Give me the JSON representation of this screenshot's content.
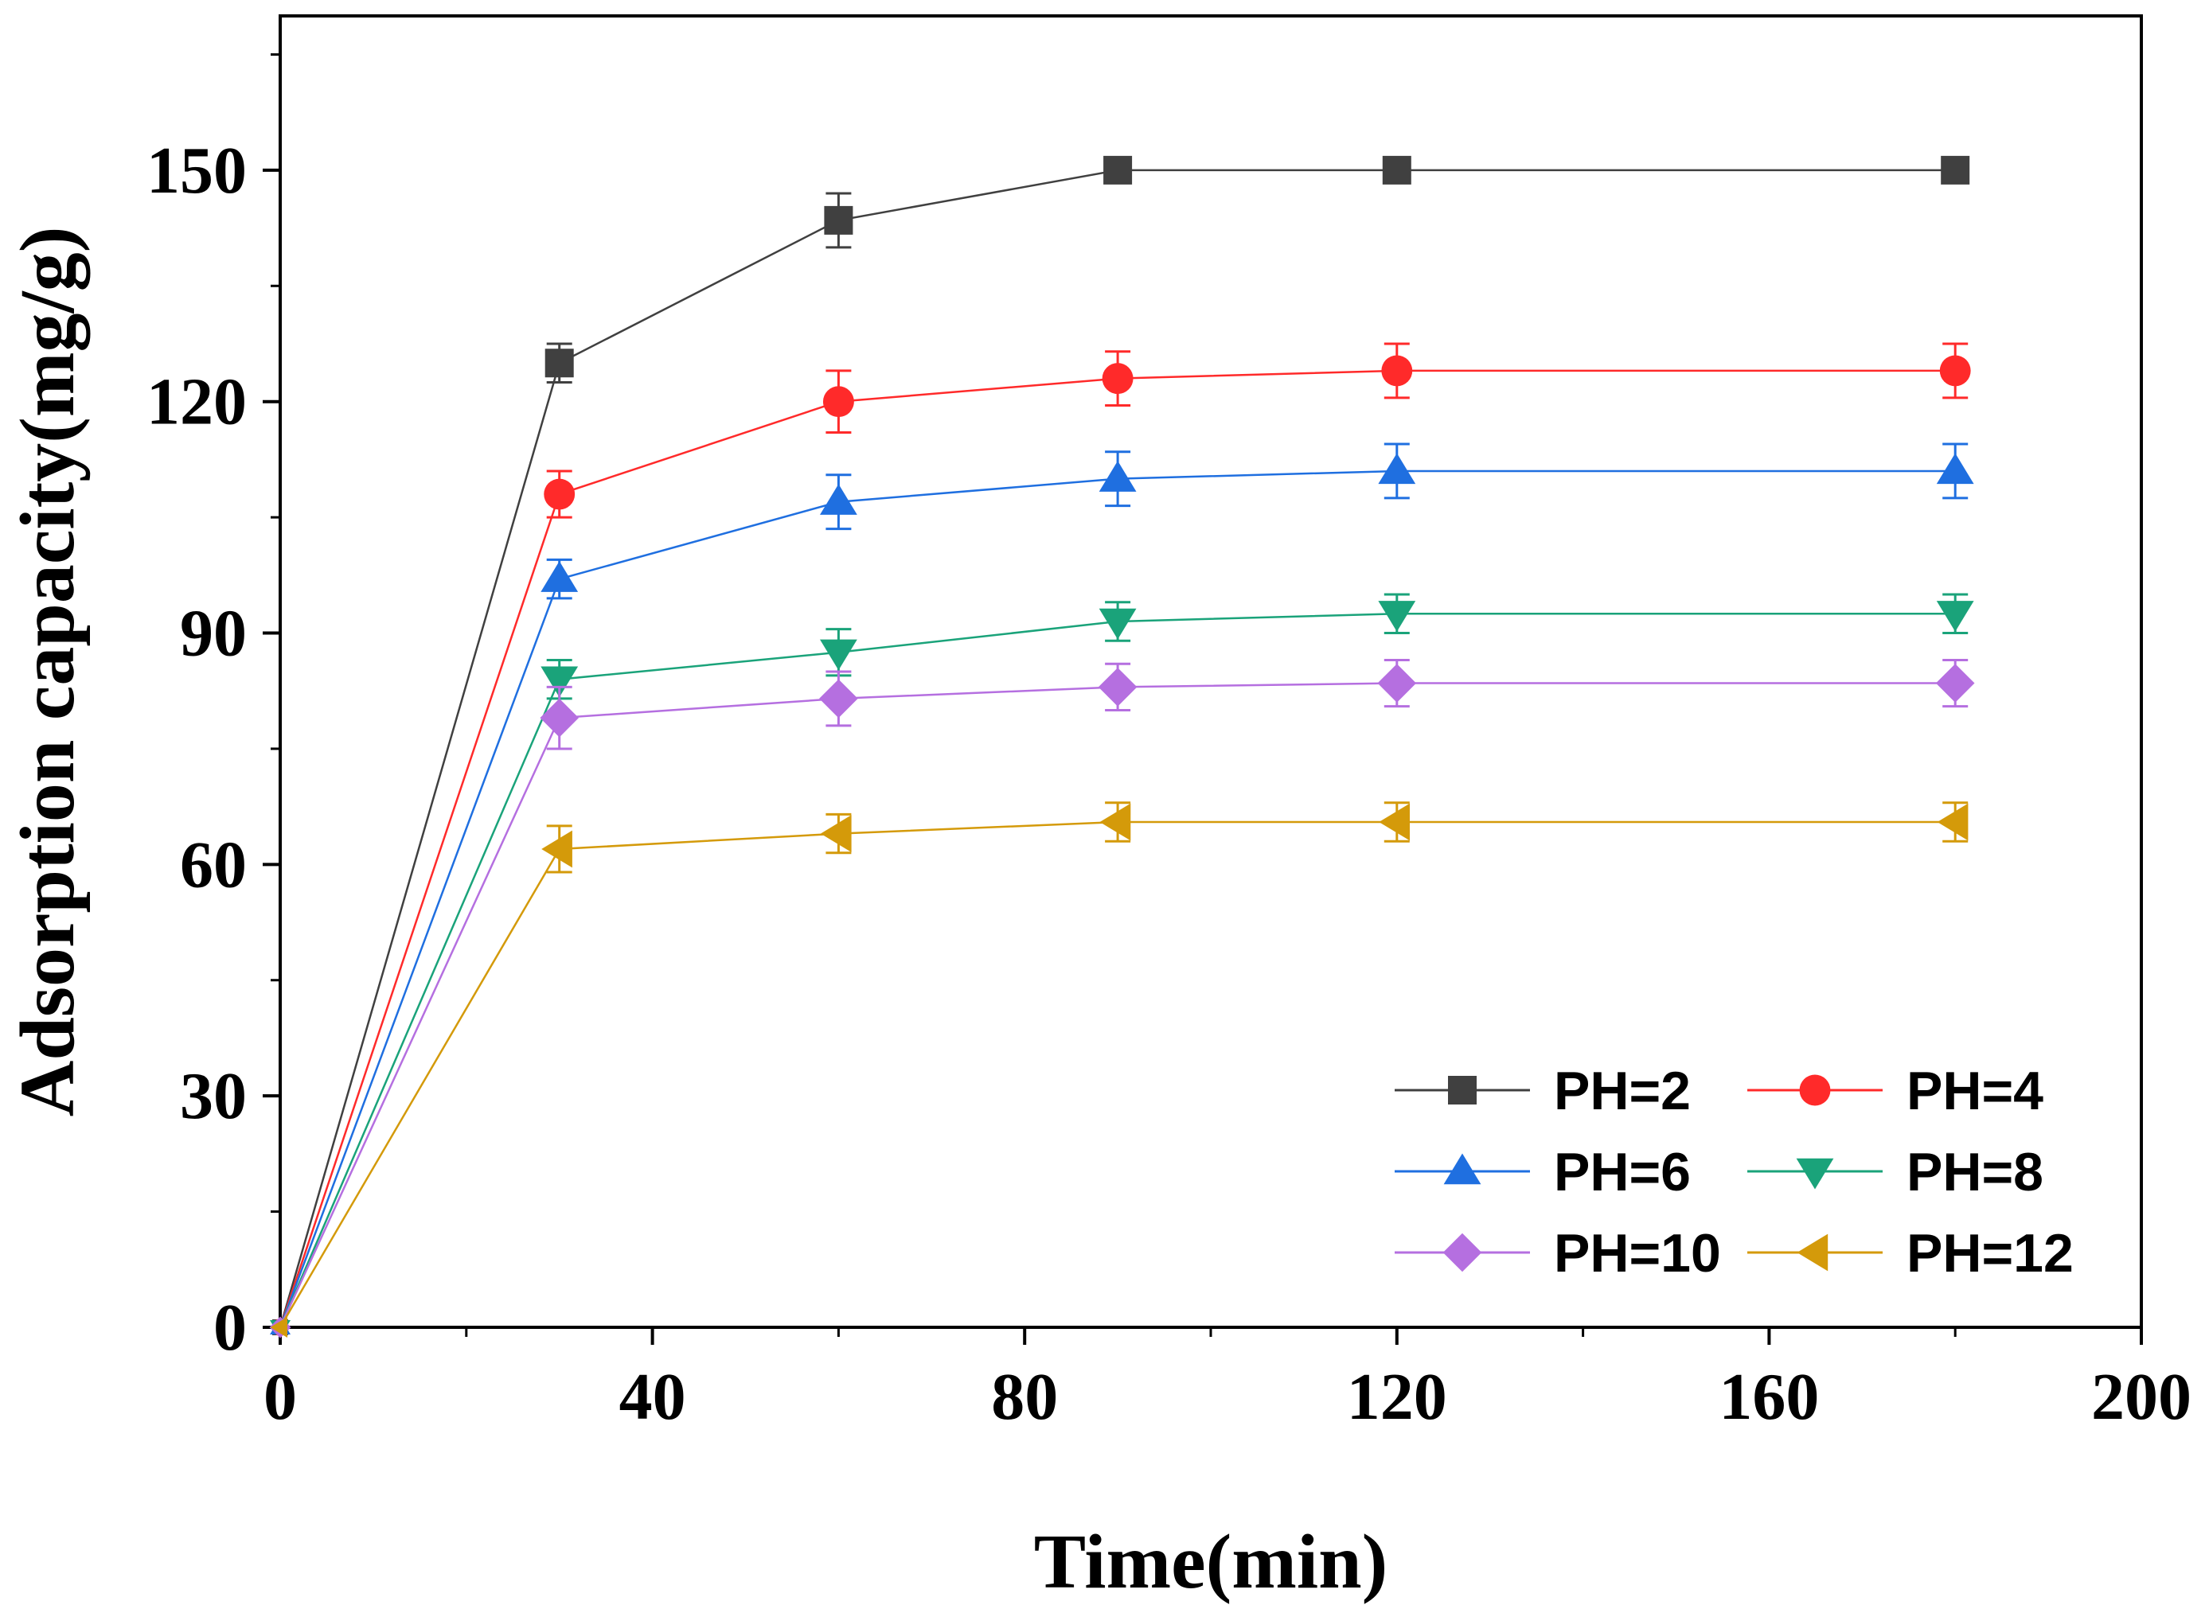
{
  "chart_data": {
    "type": "line",
    "title": "",
    "xlabel": "Time(min)",
    "ylabel": "Adsorption capacity(mg/g)",
    "xlim": [
      0,
      200
    ],
    "ylim": [
      0,
      170
    ],
    "xticks": [
      0,
      40,
      80,
      120,
      160,
      200
    ],
    "yticks": [
      0,
      30,
      60,
      90,
      120,
      150
    ],
    "xtick_labels": [
      "0",
      "40",
      "80",
      "120",
      "160",
      "200"
    ],
    "ytick_labels": [
      "0",
      "30",
      "60",
      "90",
      "120",
      "150"
    ],
    "x": [
      0,
      30,
      60,
      90,
      120,
      180
    ],
    "legend_position": "bottom-right",
    "grid": false,
    "series": [
      {
        "name": "PH=2",
        "marker": "square",
        "color": "#404040",
        "values": [
          0,
          125,
          143.5,
          150,
          150,
          150
        ],
        "errors": [
          0,
          2.5,
          3.5,
          0,
          0,
          0
        ]
      },
      {
        "name": "PH=4",
        "marker": "circle",
        "color": "#ff2a2a",
        "values": [
          0,
          108,
          120,
          123,
          124,
          124
        ],
        "errors": [
          0,
          3,
          4,
          3.5,
          3.5,
          3.5
        ]
      },
      {
        "name": "PH=6",
        "marker": "triangle-up",
        "color": "#1f6fe0",
        "values": [
          0,
          97,
          107,
          110,
          111,
          111
        ],
        "errors": [
          0,
          2.5,
          3.5,
          3.5,
          3.5,
          3.5
        ]
      },
      {
        "name": "PH=8",
        "marker": "triangle-down",
        "color": "#1aa37a",
        "values": [
          0,
          84,
          87.5,
          91.5,
          92.5,
          92.5
        ],
        "errors": [
          0,
          2.5,
          3,
          2.5,
          2.5,
          2.5
        ]
      },
      {
        "name": "PH=10",
        "marker": "diamond",
        "color": "#b56fe0",
        "values": [
          0,
          79,
          81.5,
          83,
          83.5,
          83.5
        ],
        "errors": [
          0,
          4,
          3.5,
          3,
          3,
          3
        ]
      },
      {
        "name": "PH=12",
        "marker": "triangle-left",
        "color": "#d49a0a",
        "values": [
          0,
          62,
          64,
          65.5,
          65.5,
          65.5
        ],
        "errors": [
          0,
          3,
          2.5,
          2.5,
          2.5,
          2.5
        ]
      }
    ]
  }
}
